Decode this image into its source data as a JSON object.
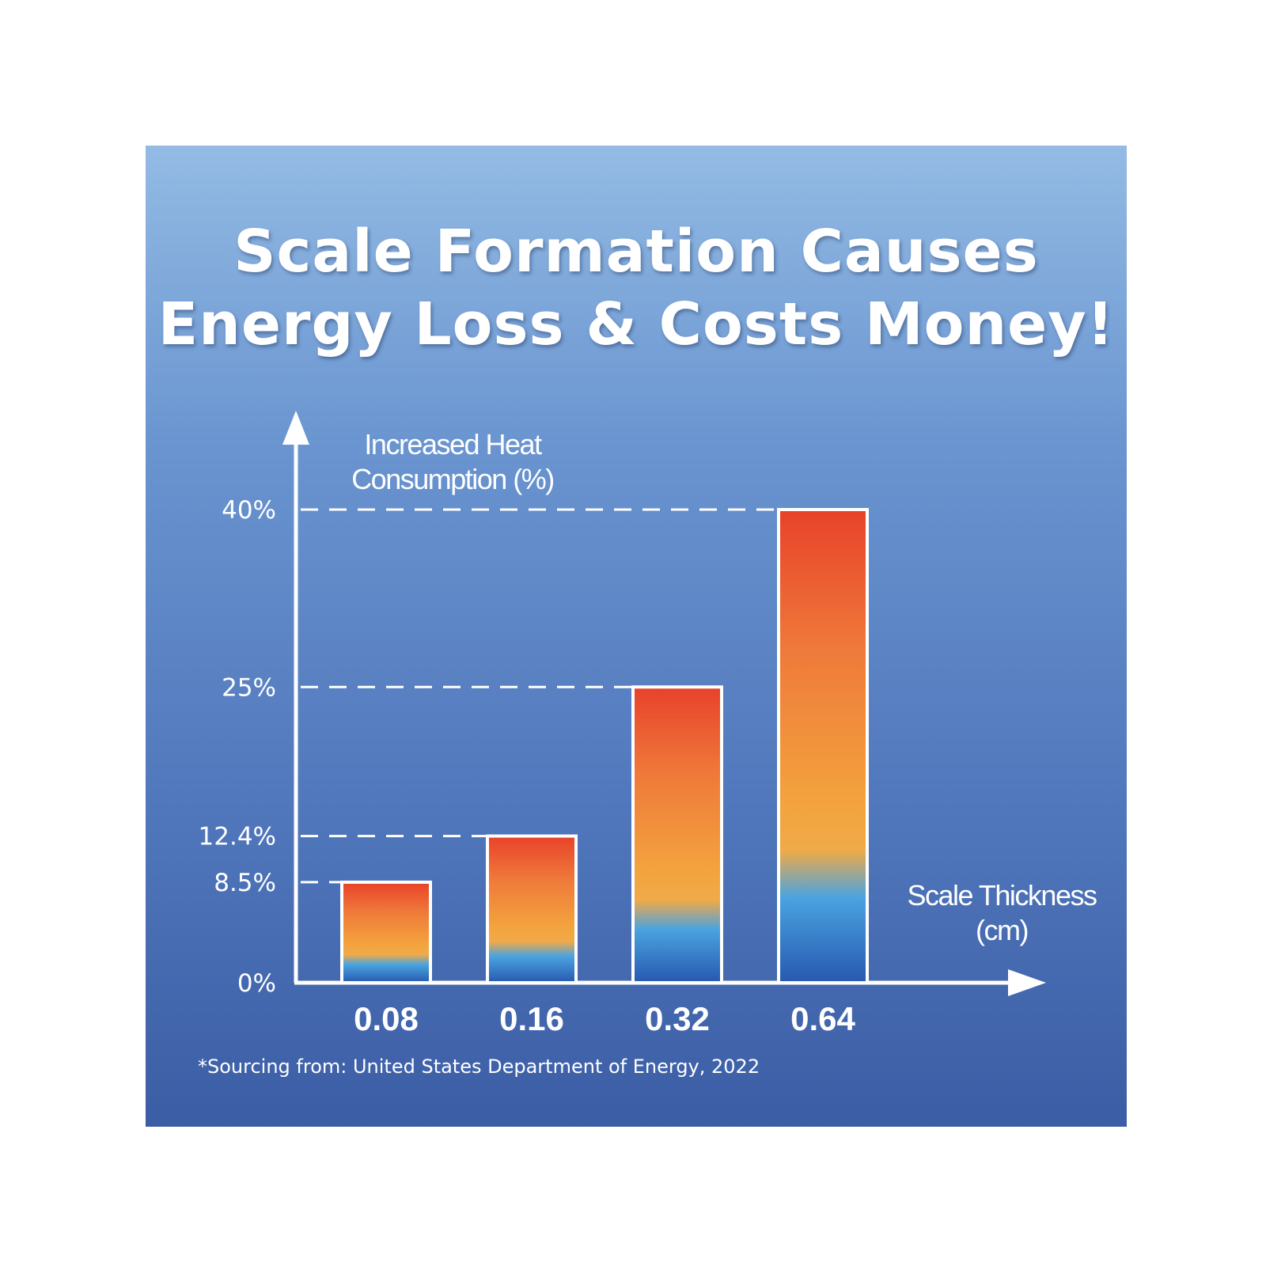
{
  "title_lines": [
    "Scale Formation Causes",
    "Energy Loss & Costs Money!"
  ],
  "footnote": "*Sourcing from: United States Department of Energy, 2022",
  "chart_data": {
    "type": "bar",
    "title": "Scale Formation Causes Energy Loss & Costs Money!",
    "ylabel_lines": [
      "Increased Heat",
      "Consumption (%)"
    ],
    "xlabel_lines": [
      "Scale Thickness",
      "(cm)"
    ],
    "categories": [
      "0.08",
      "0.16",
      "0.32",
      "0.64"
    ],
    "values": [
      8.5,
      12.4,
      25,
      40
    ],
    "ytick_labels": [
      "0%",
      "8.5%",
      "12.4%",
      "25%",
      "40%"
    ],
    "ytick_values": [
      0,
      8.5,
      12.4,
      25,
      40
    ],
    "grid": "dashed lines at data values",
    "colors": {
      "bar_top": "#e8422a",
      "bar_mid": "#f3a33e",
      "bar_bottom": "#2d67c4",
      "bar_border": "#ffffff"
    }
  }
}
